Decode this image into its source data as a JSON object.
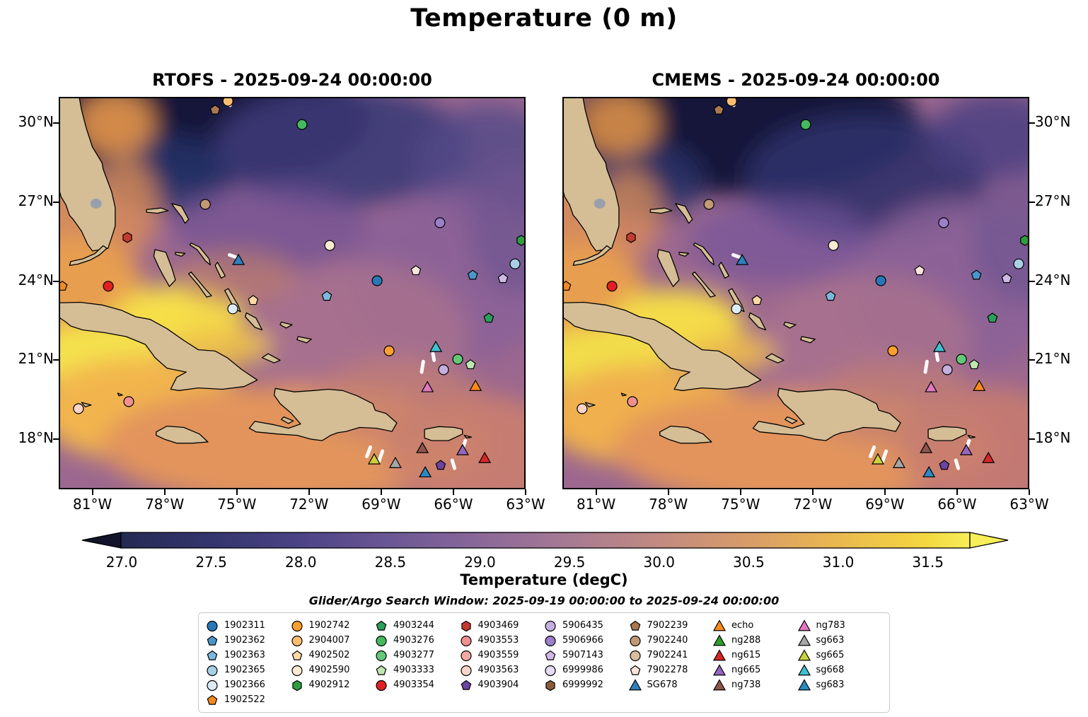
{
  "figure": {
    "title": "Temperature (0 m)",
    "search_window": "Glider/Argo Search Window: 2025-09-19 00:00:00 to 2025-09-24 00:00:00"
  },
  "chart_data": {
    "type": "heatmap",
    "panels": [
      {
        "title": "RTOFS - 2025-09-24 00:00:00"
      },
      {
        "title": "CMEMS - 2025-09-24 00:00:00"
      }
    ],
    "x_tick_labels": [
      "81°W",
      "78°W",
      "75°W",
      "72°W",
      "69°W",
      "66°W",
      "63°W"
    ],
    "x_tick_lons": [
      -81,
      -78,
      -75,
      -72,
      -69,
      -66,
      -63
    ],
    "y_tick_labels": [
      "30°N",
      "27°N",
      "24°N",
      "21°N",
      "18°N"
    ],
    "y_tick_lats": [
      30,
      27,
      24,
      21,
      18
    ],
    "lon_range": [
      -82.4,
      -63.0
    ],
    "lat_range": [
      16.1,
      31.0
    ],
    "colorbar": {
      "label": "Temperature (degC)",
      "ticks": [
        27.0,
        27.5,
        28.0,
        28.5,
        29.0,
        29.5,
        30.0,
        30.5,
        31.0,
        31.5
      ],
      "tick_labels": [
        "27.0",
        "27.5",
        "28.0",
        "28.5",
        "29.0",
        "29.5",
        "30.0",
        "30.5",
        "31.0",
        "31.5"
      ],
      "colors": [
        "#252a52",
        "#33356e",
        "#4c4386",
        "#6b5795",
        "#8a6899",
        "#a77a93",
        "#c28a81",
        "#d89c68",
        "#eab84f",
        "#f4d840"
      ],
      "under_color": "#12142a",
      "over_color": "#f7ee58"
    },
    "markers": [
      {
        "id": "7902239",
        "lon": -75.9,
        "lat": 30.5
      },
      {
        "id": "2904007",
        "lon": -75.37,
        "lat": 30.84
      },
      {
        "id": "4903276",
        "lon": -72.29,
        "lat": 29.95
      },
      {
        "id": "7902240",
        "lon": -76.31,
        "lat": 26.92
      },
      {
        "id": "5906966",
        "lon": -66.56,
        "lat": 26.22
      },
      {
        "id": "4903469",
        "lon": -79.55,
        "lat": 25.66
      },
      {
        "id": "4902912",
        "lon": -63.18,
        "lat": 25.55
      },
      {
        "id": "4902590",
        "lon": -71.14,
        "lat": 25.36
      },
      {
        "id": "SG678",
        "lon": -74.93,
        "lat": 24.8
      },
      {
        "id": "1902365",
        "lon": -63.44,
        "lat": 24.66
      },
      {
        "id": "7902278",
        "lon": -67.56,
        "lat": 24.4
      },
      {
        "id": "1902362",
        "lon": -65.2,
        "lat": 24.23
      },
      {
        "id": "5907143",
        "lon": -63.94,
        "lat": 24.1
      },
      {
        "id": "1902522",
        "lon": -82.25,
        "lat": 23.81
      },
      {
        "id": "4903354",
        "lon": -80.34,
        "lat": 23.81
      },
      {
        "id": "1902311",
        "lon": -69.17,
        "lat": 24.02
      },
      {
        "id": "4902502",
        "lon": -74.32,
        "lat": 23.27
      },
      {
        "id": "1902363",
        "lon": -71.26,
        "lat": 23.43
      },
      {
        "id": "1902366",
        "lon": -75.17,
        "lat": 22.95
      },
      {
        "id": "4903244",
        "lon": -64.53,
        "lat": 22.6
      },
      {
        "id": "1902742",
        "lon": -68.67,
        "lat": 21.36
      },
      {
        "id": "sg668",
        "lon": -66.73,
        "lat": 21.5
      },
      {
        "id": "4903277",
        "lon": -65.82,
        "lat": 21.04
      },
      {
        "id": "4903333",
        "lon": -65.29,
        "lat": 20.83
      },
      {
        "id": "5906435",
        "lon": -66.41,
        "lat": 20.64
      },
      {
        "id": "ng783",
        "lon": -67.08,
        "lat": 19.97
      },
      {
        "id": "echo",
        "lon": -65.08,
        "lat": 20.02
      },
      {
        "id": "4903563",
        "lon": -81.58,
        "lat": 19.16
      },
      {
        "id": "4903553",
        "lon": -79.49,
        "lat": 19.43
      },
      {
        "id": "ng738",
        "lon": -67.29,
        "lat": 17.66
      },
      {
        "id": "ng665",
        "lon": -65.62,
        "lat": 17.58
      },
      {
        "id": "ng615",
        "lon": -64.7,
        "lat": 17.28
      },
      {
        "id": "sg665",
        "lon": -69.29,
        "lat": 17.23
      },
      {
        "id": "sg663",
        "lon": -68.41,
        "lat": 17.09
      },
      {
        "id": "4903904",
        "lon": -66.53,
        "lat": 17.01
      },
      {
        "id": "sg683",
        "lon": -67.17,
        "lat": 16.74
      }
    ],
    "tracks": [
      [
        [
          -75.5,
          31.05
        ],
        [
          -75.28,
          30.68
        ]
      ],
      [
        [
          -75.3,
          25.0
        ],
        [
          -75.0,
          24.9
        ]
      ],
      [
        [
          -67.25,
          20.95
        ],
        [
          -67.32,
          20.55
        ]
      ],
      [
        [
          -66.85,
          21.25
        ],
        [
          -66.8,
          21.0
        ]
      ],
      [
        [
          -69.45,
          17.7
        ],
        [
          -69.6,
          17.35
        ]
      ],
      [
        [
          -68.95,
          17.55
        ],
        [
          -69.1,
          17.15
        ]
      ],
      [
        [
          -65.5,
          17.95
        ],
        [
          -65.62,
          17.65
        ]
      ],
      [
        [
          -66.05,
          17.2
        ],
        [
          -65.95,
          16.9
        ]
      ]
    ]
  },
  "legend": {
    "columns": [
      [
        {
          "label": "1902311",
          "shape": "circle",
          "color": "#2878b8"
        },
        {
          "label": "1902362",
          "shape": "pentagon",
          "color": "#4b97c9"
        },
        {
          "label": "1902363",
          "shape": "pentagon",
          "color": "#7db8dc"
        },
        {
          "label": "1902365",
          "shape": "circle",
          "color": "#a8cfe6"
        },
        {
          "label": "1902366",
          "shape": "circle",
          "color": "#ddebf5"
        },
        {
          "label": "1902522",
          "shape": "pentagon",
          "color": "#f28a1e"
        }
      ],
      [
        {
          "label": "1902742",
          "shape": "circle",
          "color": "#ffa02e"
        },
        {
          "label": "2904007",
          "shape": "circle",
          "color": "#fdbf6f"
        },
        {
          "label": "4902502",
          "shape": "pentagon",
          "color": "#fdd9a5"
        },
        {
          "label": "4902590",
          "shape": "circle",
          "color": "#fcead2"
        },
        {
          "label": "4902912",
          "shape": "hexagon",
          "color": "#2f9e3e"
        }
      ],
      [
        {
          "label": "4903244",
          "shape": "pentagon",
          "color": "#2aa05a"
        },
        {
          "label": "4903276",
          "shape": "circle",
          "color": "#46b85e"
        },
        {
          "label": "4903277",
          "shape": "circle",
          "color": "#63c878"
        },
        {
          "label": "4903333",
          "shape": "pentagon",
          "color": "#bfe6b0"
        },
        {
          "label": "4903354",
          "shape": "circle",
          "color": "#e02020"
        }
      ],
      [
        {
          "label": "4903469",
          "shape": "hexagon",
          "color": "#c23a30"
        },
        {
          "label": "4903553",
          "shape": "circle",
          "color": "#f29090"
        },
        {
          "label": "4903559",
          "shape": "circle",
          "color": "#f5aaa2"
        },
        {
          "label": "4903563",
          "shape": "circle",
          "color": "#f9d4c8"
        },
        {
          "label": "4903904",
          "shape": "pentagon",
          "color": "#6a44a0"
        }
      ],
      [
        {
          "label": "5906435",
          "shape": "circle",
          "color": "#c4afdf"
        },
        {
          "label": "5906966",
          "shape": "circle",
          "color": "#9b7fc9"
        },
        {
          "label": "5907143",
          "shape": "pentagon",
          "color": "#cfbae6"
        },
        {
          "label": "6999986",
          "shape": "circle",
          "color": "#e6dcf2"
        },
        {
          "label": "6999992",
          "shape": "hexagon",
          "color": "#8a5a3a"
        }
      ],
      [
        {
          "label": "7902239",
          "shape": "pentagon",
          "color": "#aa7850"
        },
        {
          "label": "7902240",
          "shape": "circle",
          "color": "#c29a76"
        },
        {
          "label": "7902241",
          "shape": "circle",
          "color": "#d9bd9c"
        },
        {
          "label": "7902278",
          "shape": "pentagon",
          "color": "#fbe4da"
        },
        {
          "label": "SG678",
          "shape": "triangle",
          "color": "#2e80be"
        }
      ],
      [
        {
          "label": "echo",
          "shape": "triangle",
          "color": "#ff8c1a"
        },
        {
          "label": "ng288",
          "shape": "triangle",
          "color": "#2ca02c"
        },
        {
          "label": "ng615",
          "shape": "triangle",
          "color": "#d62728"
        },
        {
          "label": "ng665",
          "shape": "triangle",
          "color": "#9467bd"
        },
        {
          "label": "ng738",
          "shape": "triangle",
          "color": "#8c564b"
        }
      ],
      [
        {
          "label": "ng783",
          "shape": "triangle",
          "color": "#e377c2"
        },
        {
          "label": "sg663",
          "shape": "triangle",
          "color": "#a6a6a6"
        },
        {
          "label": "sg665",
          "shape": "triangle",
          "color": "#cdd03c"
        },
        {
          "label": "sg668",
          "shape": "triangle",
          "color": "#3fc0d0"
        },
        {
          "label": "sg683",
          "shape": "triangle",
          "color": "#2a8ac2"
        }
      ]
    ]
  }
}
